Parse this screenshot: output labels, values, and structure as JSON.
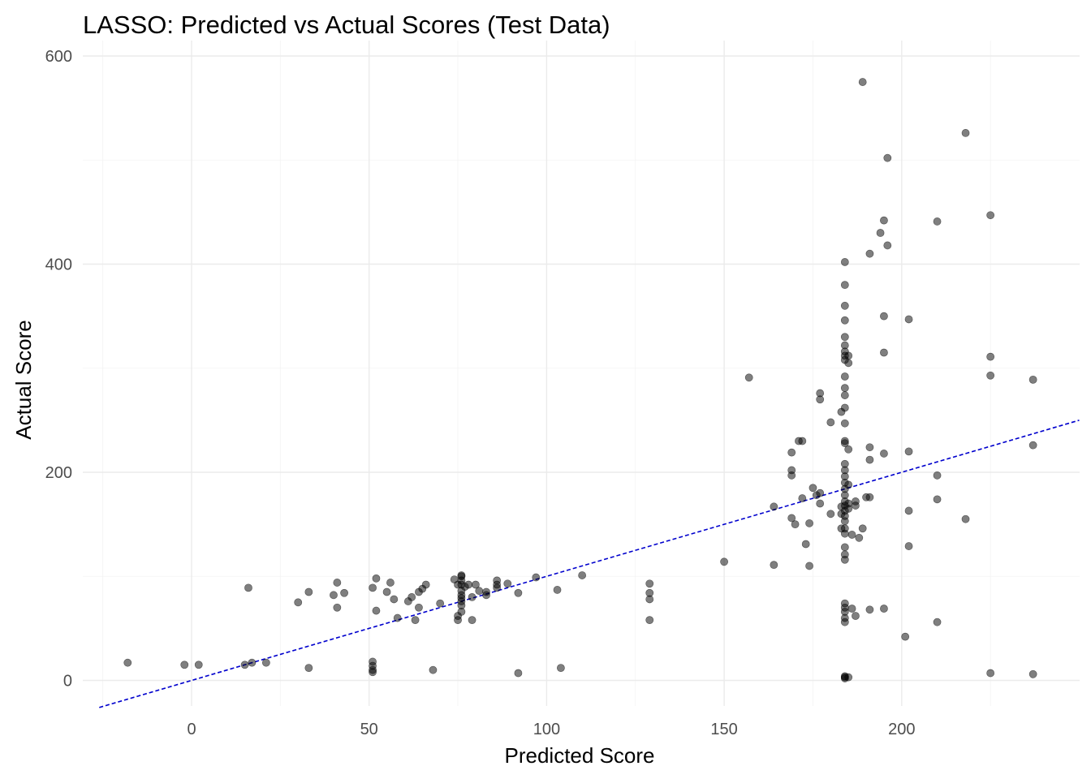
{
  "chart_data": {
    "type": "scatter",
    "title": "LASSO: Predicted vs Actual Scores (Test Data)",
    "xlabel": "Predicted Score",
    "ylabel": "Actual Score",
    "xlim": [
      -26,
      250
    ],
    "ylim": [
      -25,
      600
    ],
    "x_ticks": [
      0,
      50,
      100,
      150,
      200
    ],
    "y_ticks": [
      0,
      200,
      400,
      600
    ],
    "x_tick_labels": [
      "0",
      "50",
      "100",
      "150",
      "200"
    ],
    "y_tick_labels": [
      "0",
      "200",
      "400",
      "600"
    ],
    "grid": true,
    "point_color": "#000000",
    "point_opacity": 0.5,
    "reference_line": {
      "slope": 1,
      "intercept": 0,
      "color": "#0000cd",
      "style": "dashed"
    },
    "points": [
      [
        -18,
        17
      ],
      [
        -2,
        15
      ],
      [
        2,
        15
      ],
      [
        15,
        15
      ],
      [
        17,
        17
      ],
      [
        21,
        17
      ],
      [
        16,
        89
      ],
      [
        30,
        75
      ],
      [
        33,
        12
      ],
      [
        33,
        85
      ],
      [
        40,
        82
      ],
      [
        41,
        94
      ],
      [
        41,
        70
      ],
      [
        43,
        84
      ],
      [
        51,
        18
      ],
      [
        51,
        14
      ],
      [
        51,
        10
      ],
      [
        51,
        8
      ],
      [
        51,
        89
      ],
      [
        52,
        98
      ],
      [
        52,
        67
      ],
      [
        55,
        85
      ],
      [
        56,
        94
      ],
      [
        57,
        78
      ],
      [
        58,
        60
      ],
      [
        61,
        76
      ],
      [
        62,
        80
      ],
      [
        63,
        58
      ],
      [
        64,
        70
      ],
      [
        64,
        85
      ],
      [
        65,
        88
      ],
      [
        66,
        92
      ],
      [
        68,
        10
      ],
      [
        70,
        74
      ],
      [
        74,
        97
      ],
      [
        75,
        92
      ],
      [
        75,
        58
      ],
      [
        75,
        62
      ],
      [
        76,
        100
      ],
      [
        76,
        101
      ],
      [
        76,
        96
      ],
      [
        76,
        92
      ],
      [
        76,
        86
      ],
      [
        76,
        82
      ],
      [
        76,
        79
      ],
      [
        76,
        76
      ],
      [
        76,
        72
      ],
      [
        76,
        66
      ],
      [
        77,
        90
      ],
      [
        78,
        92
      ],
      [
        79,
        58
      ],
      [
        79,
        80
      ],
      [
        80,
        92
      ],
      [
        81,
        86
      ],
      [
        83,
        82
      ],
      [
        83,
        85
      ],
      [
        86,
        96
      ],
      [
        86,
        92
      ],
      [
        86,
        89
      ],
      [
        89,
        93
      ],
      [
        92,
        7
      ],
      [
        92,
        84
      ],
      [
        97,
        99
      ],
      [
        103,
        87
      ],
      [
        104,
        12
      ],
      [
        110,
        101
      ],
      [
        129,
        93
      ],
      [
        129,
        84
      ],
      [
        129,
        78
      ],
      [
        129,
        58
      ],
      [
        150,
        114
      ],
      [
        157,
        291
      ],
      [
        164,
        111
      ],
      [
        164,
        167
      ],
      [
        169,
        219
      ],
      [
        169,
        202
      ],
      [
        169,
        197
      ],
      [
        169,
        156
      ],
      [
        170,
        150
      ],
      [
        171,
        230
      ],
      [
        172,
        230
      ],
      [
        172,
        175
      ],
      [
        173,
        131
      ],
      [
        174,
        151
      ],
      [
        174,
        110
      ],
      [
        175,
        185
      ],
      [
        176,
        178
      ],
      [
        177,
        270
      ],
      [
        177,
        276
      ],
      [
        177,
        180
      ],
      [
        177,
        170
      ],
      [
        180,
        248
      ],
      [
        180,
        160
      ],
      [
        183,
        258
      ],
      [
        183,
        167
      ],
      [
        183,
        146
      ],
      [
        183,
        160
      ],
      [
        184,
        402
      ],
      [
        184,
        380
      ],
      [
        184,
        360
      ],
      [
        184,
        346
      ],
      [
        184,
        330
      ],
      [
        184,
        322
      ],
      [
        184,
        316
      ],
      [
        184,
        312
      ],
      [
        184,
        308
      ],
      [
        184,
        292
      ],
      [
        184,
        281
      ],
      [
        184,
        274
      ],
      [
        184,
        262
      ],
      [
        184,
        247
      ],
      [
        184,
        230
      ],
      [
        184,
        228
      ],
      [
        184,
        208
      ],
      [
        184,
        202
      ],
      [
        184,
        196
      ],
      [
        184,
        190
      ],
      [
        184,
        184
      ],
      [
        184,
        178
      ],
      [
        184,
        172
      ],
      [
        184,
        168
      ],
      [
        184,
        163
      ],
      [
        184,
        158
      ],
      [
        184,
        153
      ],
      [
        184,
        146
      ],
      [
        184,
        141
      ],
      [
        184,
        128
      ],
      [
        184,
        121
      ],
      [
        184,
        116
      ],
      [
        184,
        74
      ],
      [
        184,
        70
      ],
      [
        184,
        66
      ],
      [
        184,
        60
      ],
      [
        184,
        56
      ],
      [
        184,
        4
      ],
      [
        184,
        3
      ],
      [
        184,
        2
      ],
      [
        185,
        312
      ],
      [
        185,
        305
      ],
      [
        185,
        222
      ],
      [
        185,
        188
      ],
      [
        185,
        170
      ],
      [
        185,
        165
      ],
      [
        185,
        3
      ],
      [
        186,
        69
      ],
      [
        186,
        140
      ],
      [
        187,
        172
      ],
      [
        187,
        168
      ],
      [
        187,
        62
      ],
      [
        188,
        137
      ],
      [
        189,
        575
      ],
      [
        189,
        146
      ],
      [
        190,
        176
      ],
      [
        191,
        410
      ],
      [
        191,
        224
      ],
      [
        191,
        212
      ],
      [
        191,
        176
      ],
      [
        191,
        68
      ],
      [
        194,
        430
      ],
      [
        195,
        442
      ],
      [
        195,
        350
      ],
      [
        195,
        315
      ],
      [
        195,
        218
      ],
      [
        195,
        69
      ],
      [
        196,
        502
      ],
      [
        196,
        418
      ],
      [
        201,
        42
      ],
      [
        202,
        347
      ],
      [
        202,
        220
      ],
      [
        202,
        163
      ],
      [
        202,
        129
      ],
      [
        210,
        441
      ],
      [
        210,
        197
      ],
      [
        210,
        174
      ],
      [
        210,
        56
      ],
      [
        218,
        526
      ],
      [
        218,
        155
      ],
      [
        225,
        447
      ],
      [
        225,
        311
      ],
      [
        225,
        293
      ],
      [
        225,
        7
      ],
      [
        237,
        289
      ],
      [
        237,
        226
      ],
      [
        237,
        6
      ]
    ]
  }
}
